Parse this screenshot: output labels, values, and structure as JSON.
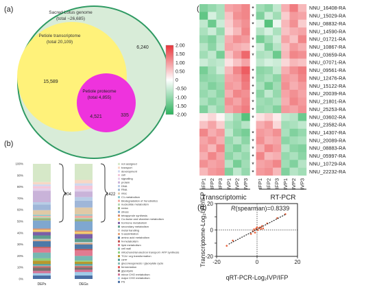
{
  "panels": {
    "a": "(a)",
    "b": "(b)",
    "c": "(c)",
    "d": "(d)"
  },
  "venn": {
    "genome_label": "Sacred Lotus genome",
    "genome_total": "(total ~26,685)",
    "transcriptome_label": "Petiole transcriptome",
    "transcriptome_total": "(total 20,109)",
    "proteome_label": "Petiole proteome",
    "proteome_total": "(total 4,855)",
    "counts": {
      "genome_only": "6,240",
      "transcriptome_only": "15,589",
      "overlap": "4,521",
      "proteome_only": "335"
    },
    "colors": {
      "genome": "#d8ecd8",
      "genome_edge": "#2f9a63",
      "transcriptome": "#fff27a",
      "proteome": "#ee33dd",
      "overlap": "#d637c8"
    }
  },
  "stacked": {
    "yticks": [
      "100%",
      "90%",
      "80%",
      "70%",
      "60%",
      "50%",
      "40%",
      "30%",
      "20%",
      "10%",
      "0%"
    ],
    "columns": [
      {
        "label": "DEPs",
        "count": "904"
      },
      {
        "label": "DEGs",
        "count": "1422"
      }
    ],
    "categories": [
      {
        "name": "not assigned",
        "color": "#d6e8c8"
      },
      {
        "name": "transport",
        "color": "#f7d7c5"
      },
      {
        "name": "development",
        "color": "#cfd8ef"
      },
      {
        "name": "cell",
        "color": "#f4c6d9"
      },
      {
        "name": "signalling",
        "color": "#e3d1ec"
      },
      {
        "name": "protein",
        "color": "#c9b3d9"
      },
      {
        "name": "DNA",
        "color": "#b8cde6"
      },
      {
        "name": "RNA",
        "color": "#9fb6d8"
      },
      {
        "name": "misc",
        "color": "#e0c9a6"
      },
      {
        "name": "C1-metabolism",
        "color": "#89c9d0"
      },
      {
        "name": "Biodegradation of Xenobiotics",
        "color": "#f1a9a0"
      },
      {
        "name": "nucleotide metabolism",
        "color": "#b2d8b2"
      },
      {
        "name": "redox",
        "color": "#9ab27a"
      },
      {
        "name": "stress",
        "color": "#7fa7cf"
      },
      {
        "name": "tetrapyrrole synthesis",
        "color": "#d98c6e"
      },
      {
        "name": "Co-factor and vitamine metabolism",
        "color": "#f2c96b"
      },
      {
        "name": "hormone metabolism",
        "color": "#7b5ea7"
      },
      {
        "name": "secondary metabolism",
        "color": "#5f9e8f"
      },
      {
        "name": "metal handling",
        "color": "#c9c9c9"
      },
      {
        "name": "S-assimilation",
        "color": "#e6a57a"
      },
      {
        "name": "amino acid metabolism",
        "color": "#4e79a7"
      },
      {
        "name": "N-metabolism",
        "color": "#c0504d"
      },
      {
        "name": "lipid metabolism",
        "color": "#e07b91"
      },
      {
        "name": "cell wall",
        "color": "#76b7b2"
      },
      {
        "name": "mitochondrial electron transport / ATP synthesis",
        "color": "#8cd17d"
      },
      {
        "name": "TCA / org transformation",
        "color": "#b6992d"
      },
      {
        "name": "OPP",
        "color": "#499894"
      },
      {
        "name": "gluconeogenesis / glyoxylate cycle",
        "color": "#86bcb6"
      },
      {
        "name": "fermentation",
        "color": "#e15759"
      },
      {
        "name": "glycolysis",
        "color": "#79706e"
      },
      {
        "name": "minor CHO metabolism",
        "color": "#d37295"
      },
      {
        "name": "major CHO metabolism",
        "color": "#a0cbe8"
      },
      {
        "name": "PS",
        "color": "#4a6fa5"
      }
    ],
    "deps_shares": [
      16,
      2,
      1.5,
      2,
      2,
      10,
      2,
      5,
      4,
      1,
      1,
      1,
      2,
      7,
      1,
      2,
      3,
      3,
      1,
      1,
      5,
      1,
      4,
      5,
      2,
      3,
      1,
      1,
      1,
      3,
      2,
      2,
      3
    ],
    "degs_shares": [
      14,
      3,
      2,
      3,
      2,
      5,
      3,
      6,
      6,
      1,
      2,
      1,
      2,
      8,
      1,
      2,
      4,
      3,
      1,
      1,
      4,
      1,
      5,
      4,
      1,
      2,
      1,
      1,
      1,
      2,
      2,
      3,
      3
    ]
  },
  "heatmap": {
    "scale_ticks": [
      "2.00",
      "1.50",
      "1.00",
      "0.50",
      "0",
      "-0.50",
      "-1.00",
      "-1.50",
      "-2.00"
    ],
    "scale_range": [
      -2,
      2
    ],
    "column_labels": [
      "IFP1",
      "IFP2",
      "IFP3",
      "IVP1",
      "IVP2",
      "IVP3",
      "IFP1",
      "IFP2",
      "IFP3",
      "IVP1",
      "IVP2",
      "IVP3"
    ],
    "group_labels": [
      "Transcriptomic",
      "RT-PCR"
    ],
    "genes": [
      "NNU_16408-RA",
      "NNU_15029-RA",
      "NNU_08832-RA",
      "NNU_14590-RA",
      "NNU_01721-RA",
      "NNU_10867-RA",
      "NNU_03659-RA",
      "NNU_07071-RA",
      "NNU_09561-RA",
      "NNU_12476-RA",
      "NNU_15122-RA",
      "NNU_20039-RA",
      "NNU_21801-RA",
      "NNU_25253-RA",
      "NNU_03602-RA",
      "NNU_23582-RA",
      "NNU_14307-RA",
      "NNU_20089-RA",
      "NNU_08883-RA",
      "NNU_05997-RA",
      "NNU_10729-RA",
      "NNU_22232-RA"
    ],
    "significance": [
      "*",
      "*",
      "*",
      "",
      "*",
      "*",
      "*",
      "",
      "*",
      "*",
      "*",
      "*",
      "*",
      "*",
      "*",
      "",
      "*",
      "*",
      "*",
      "*",
      "*",
      "*"
    ],
    "values": [
      [
        -1.2,
        -1.0,
        -0.8,
        0.9,
        1.0,
        1.2,
        -0.9,
        -1.1,
        -0.6,
        0.8,
        1.3,
        0.7
      ],
      [
        -1.5,
        -0.4,
        -0.8,
        0.6,
        1.1,
        1.2,
        -1.2,
        -0.5,
        -0.9,
        0.5,
        1.0,
        0.9
      ],
      [
        -0.6,
        -1.4,
        -0.5,
        0.5,
        0.9,
        1.1,
        -0.3,
        -1.6,
        -0.2,
        0.7,
        1.1,
        0.5
      ],
      [
        -0.8,
        -0.5,
        -1.0,
        0.4,
        0.7,
        1.2,
        -0.7,
        -0.4,
        -0.8,
        0.6,
        0.8,
        0.9
      ],
      [
        -1.0,
        -1.2,
        -0.7,
        0.8,
        1.1,
        1.0,
        -1.3,
        -0.9,
        -0.5,
        0.9,
        0.6,
        1.2
      ],
      [
        -0.7,
        -1.1,
        -0.6,
        0.9,
        0.8,
        0.7,
        -0.5,
        -1.2,
        -0.7,
        0.6,
        1.0,
        0.8
      ],
      [
        -0.9,
        -0.6,
        -1.3,
        0.6,
        1.0,
        1.5,
        -0.8,
        -0.7,
        -1.4,
        0.7,
        1.2,
        1.1
      ],
      [
        -0.5,
        -0.7,
        -0.6,
        0.3,
        0.6,
        0.9,
        -0.6,
        -0.4,
        -0.5,
        0.4,
        0.7,
        0.6
      ],
      [
        -1.3,
        -0.9,
        -0.5,
        0.7,
        1.2,
        1.6,
        -1.1,
        -1.0,
        -0.6,
        0.8,
        1.1,
        1.3
      ],
      [
        -1.1,
        -1.0,
        -0.9,
        0.9,
        1.0,
        1.4,
        -1.0,
        -0.8,
        -1.1,
        1.0,
        0.9,
        1.2
      ],
      [
        -0.9,
        -1.2,
        -1.0,
        1.0,
        0.9,
        1.3,
        -0.8,
        -1.3,
        -0.9,
        1.1,
        0.8,
        1.0
      ],
      [
        -1.0,
        -0.8,
        -1.1,
        0.8,
        1.2,
        1.1,
        -1.1,
        -0.6,
        -1.0,
        0.9,
        1.1,
        0.9
      ],
      [
        -0.8,
        -1.1,
        -0.9,
        1.1,
        0.9,
        1.2,
        -0.9,
        -1.0,
        -0.8,
        0.8,
        1.2,
        1.0
      ],
      [
        -1.2,
        -0.7,
        -1.0,
        0.9,
        1.1,
        1.3,
        -1.0,
        -0.9,
        -1.2,
        1.0,
        0.9,
        1.1
      ],
      [
        0.2,
        0.4,
        0.1,
        -0.5,
        -0.9,
        -1.6,
        0.3,
        0.5,
        0.2,
        -0.6,
        -0.7,
        -1.4
      ],
      [
        0.6,
        0.9,
        0.5,
        -0.8,
        -1.0,
        -0.7,
        0.8,
        1.0,
        0.4,
        -0.9,
        -0.8,
        -0.6
      ],
      [
        1.2,
        0.8,
        1.0,
        -0.6,
        -1.1,
        -1.3,
        1.0,
        0.9,
        1.1,
        -0.8,
        -1.2,
        -1.0
      ],
      [
        0.9,
        1.1,
        0.8,
        -1.0,
        -0.7,
        -1.1,
        1.1,
        0.8,
        0.9,
        -1.1,
        -0.9,
        -0.8
      ],
      [
        1.0,
        0.7,
        1.2,
        -0.9,
        -1.2,
        -0.8,
        0.8,
        1.2,
        1.0,
        -0.7,
        -1.1,
        -1.2
      ],
      [
        0.8,
        1.2,
        0.9,
        -1.1,
        -0.8,
        -1.0,
        1.2,
        0.7,
        0.8,
        -1.0,
        -0.8,
        -1.1
      ],
      [
        1.1,
        0.9,
        1.0,
        -0.7,
        -1.3,
        -0.9,
        0.9,
        1.0,
        1.2,
        -0.9,
        -1.2,
        -0.7
      ],
      [
        0.7,
        1.0,
        1.1,
        -1.2,
        -0.6,
        -1.0,
        1.0,
        1.1,
        0.7,
        -1.2,
        -0.7,
        -0.9
      ]
    ],
    "colors": {
      "high": "#e8353b",
      "mid": "#ffffff",
      "low": "#2db35d"
    }
  },
  "scatter": {
    "ylabel": "Transcriptome-Log₂IVP/IFP",
    "xlabel": "qRT-PCR-Log₂IVP/IFP",
    "annotation_prefix": "R",
    "annotation_rest": "(spearman)=0.8339",
    "xticks": [
      "-20",
      "0",
      "20"
    ],
    "yticks": [
      "20",
      "10",
      "0",
      "-10",
      "-20"
    ],
    "xlim": [
      -20,
      20
    ],
    "ylim": [
      -20,
      20
    ],
    "point_color": "#e8613a",
    "x": [
      -15,
      -12,
      -3,
      -2,
      -1,
      -1.5,
      -0.5,
      0,
      0.5,
      1,
      1.5,
      2,
      3,
      2.5,
      5,
      10,
      14
    ],
    "y": [
      -12,
      -8,
      -3,
      -1,
      -2,
      0.5,
      1,
      2,
      0,
      1.5,
      2,
      0.8,
      1.2,
      3,
      5,
      9,
      12
    ]
  }
}
